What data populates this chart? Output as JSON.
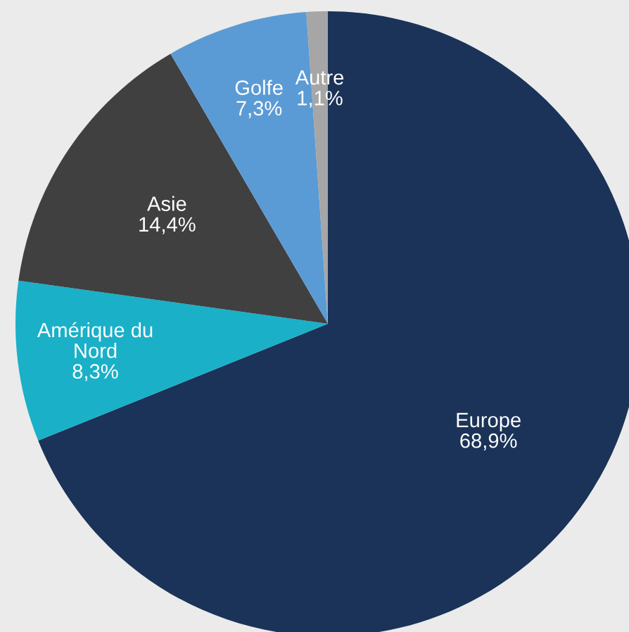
{
  "chart_data": {
    "type": "pie",
    "categories": [
      "Europe",
      "Amérique du Nord",
      "Asie",
      "Golfe",
      "Autre"
    ],
    "values": [
      68.9,
      8.3,
      14.4,
      7.3,
      1.1
    ],
    "value_labels": [
      "68,9%",
      "8,3%",
      "14,4%",
      "7,3%",
      "1,1%"
    ],
    "colors": [
      "#1b3358",
      "#1ab0c8",
      "#404040",
      "#5b9bd5",
      "#a6a6a6"
    ]
  }
}
